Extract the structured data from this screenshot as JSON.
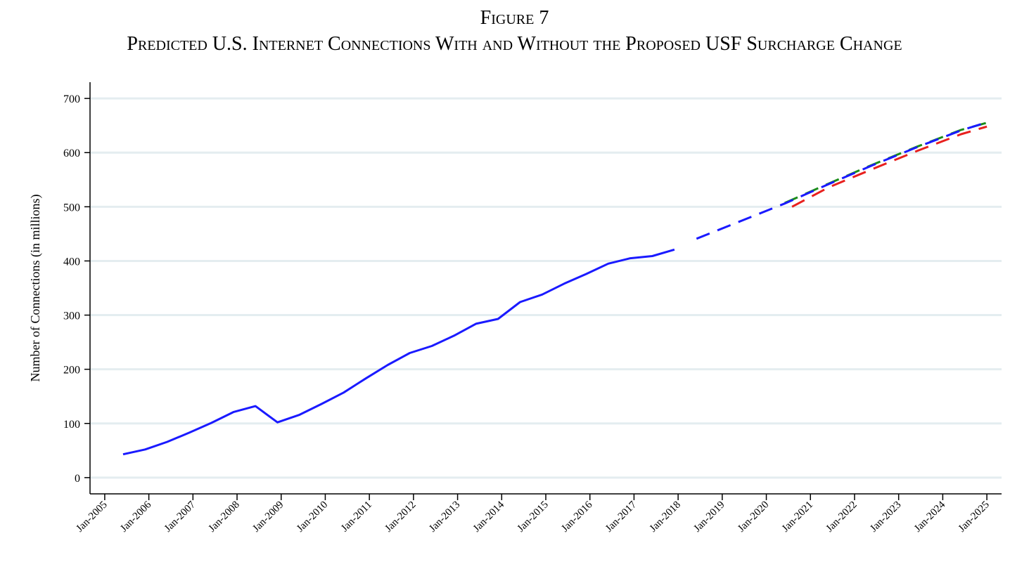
{
  "figure": {
    "label": "Figure 7",
    "title": "Predicted U.S. Internet Connections With and Without the Proposed USF Surcharge Change"
  },
  "chart_data": {
    "type": "line",
    "title": "Predicted U.S. Internet Connections With and Without the Proposed USF Surcharge Change",
    "xlabel": "",
    "ylabel": "Number of Connections (in millions)",
    "ylim": [
      -30,
      730
    ],
    "xlim": [
      "2004-09",
      "2025-05"
    ],
    "yticks": [
      0,
      100,
      200,
      300,
      400,
      500,
      600,
      700
    ],
    "xtick_labels": [
      "Jan-2005",
      "Jan-2006",
      "Jan-2007",
      "Jan-2008",
      "Jan-2009",
      "Jan-2010",
      "Jan-2011",
      "Jan-2012",
      "Jan-2013",
      "Jan-2014",
      "Jan-2015",
      "Jan-2016",
      "Jan-2017",
      "Jan-2018",
      "Jan-2019",
      "Jan-2020",
      "Jan-2021",
      "Jan-2022",
      "Jan-2023",
      "Jan-2024",
      "Jan-2025"
    ],
    "xtick_dates": [
      "2005-01",
      "2006-01",
      "2007-01",
      "2008-01",
      "2009-01",
      "2010-01",
      "2011-01",
      "2012-01",
      "2013-01",
      "2014-01",
      "2015-01",
      "2016-01",
      "2017-01",
      "2018-01",
      "2019-01",
      "2020-01",
      "2021-01",
      "2022-01",
      "2023-01",
      "2024-01",
      "2025-01"
    ],
    "grid": true,
    "legend": "none",
    "series": [
      {
        "style": "solid",
        "color": "#1a1aff",
        "x": [
          "2005-06",
          "2005-12",
          "2006-06",
          "2006-12",
          "2007-06",
          "2007-12",
          "2008-06",
          "2008-12",
          "2009-06",
          "2009-12",
          "2010-06",
          "2010-12",
          "2011-06",
          "2011-12",
          "2012-06",
          "2012-12",
          "2013-06",
          "2013-12",
          "2014-06",
          "2014-12",
          "2015-06",
          "2015-12",
          "2016-06",
          "2016-12",
          "2017-06",
          "2017-12"
        ],
        "values": [
          43,
          52,
          66,
          83,
          101,
          121,
          132,
          102,
          116,
          136,
          157,
          183,
          208,
          230,
          243,
          262,
          284,
          293,
          324,
          338,
          358,
          376,
          395,
          405,
          409,
          421
        ]
      },
      {
        "style": "dashed",
        "color": "#1a1aff",
        "x": [
          "2018-06",
          "2020-06",
          "2021-06",
          "2022-06",
          "2023-06",
          "2024-06",
          "2025-01"
        ],
        "values": [
          441,
          506,
          542,
          577,
          610,
          641,
          656
        ]
      },
      {
        "style": "dashed",
        "color": "#1a8c1a",
        "x": [
          "2020-06",
          "2021-06",
          "2022-06",
          "2023-06",
          "2024-06",
          "2025-01"
        ],
        "values": [
          507,
          543,
          578,
          611,
          642,
          655
        ]
      },
      {
        "style": "dashed",
        "color": "#e8201e",
        "x": [
          "2020-08",
          "2021-06",
          "2022-06",
          "2023-06",
          "2024-06",
          "2025-01"
        ],
        "values": [
          500,
          536,
          570,
          603,
          634,
          648
        ]
      }
    ]
  }
}
